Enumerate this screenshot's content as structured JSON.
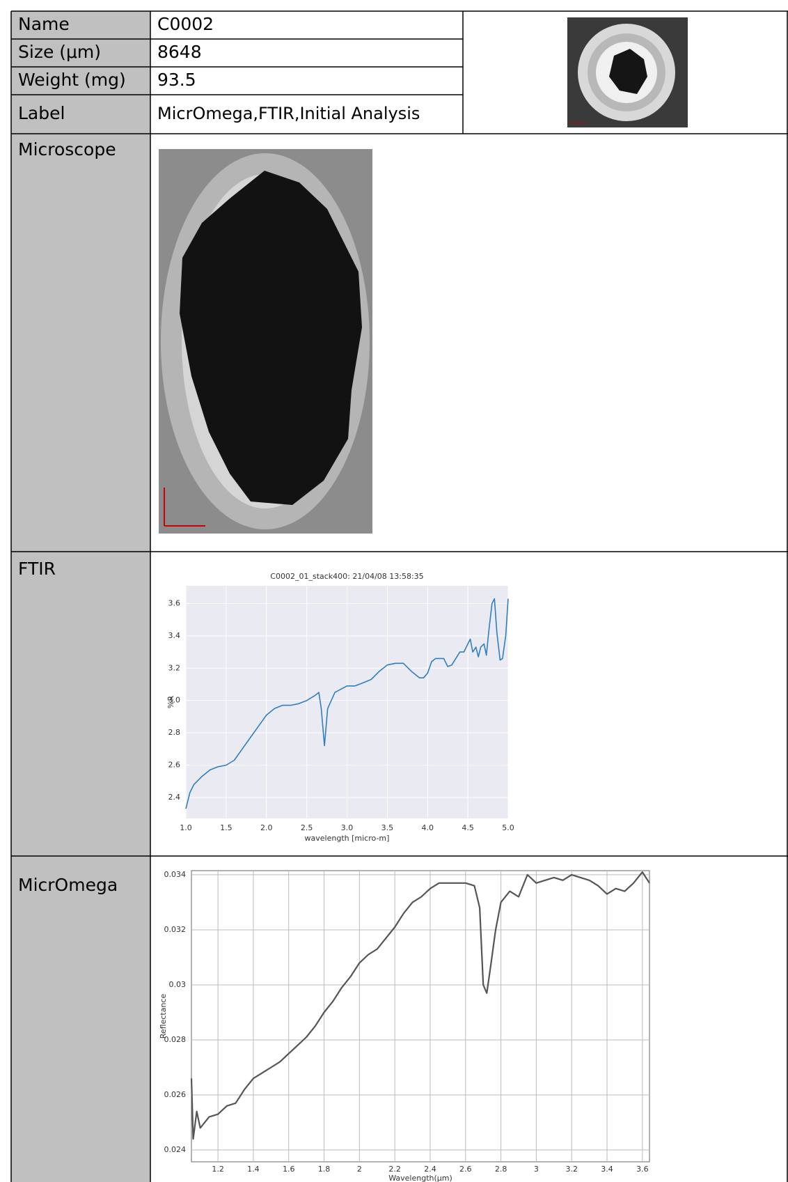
{
  "table": {
    "rows": [
      [
        "Name",
        "C0002"
      ],
      [
        "Size (μm)",
        "8648"
      ],
      [
        "Weight (mg)",
        "93.5"
      ],
      [
        "Label",
        "MicrOmega,FTIR,Initial Analysis"
      ]
    ],
    "microscope_label": "Microscope",
    "ftir_label": "FTIR",
    "micromega_label": "MicrOmega"
  },
  "chart_data": [
    {
      "type": "line",
      "title": "C0002_01_stack400:  21/04/08 13:58:35",
      "x_label": "wavelength [micro-m]",
      "y_label": "%R",
      "xlim": [
        1,
        5
      ],
      "ylim": [
        2.27,
        3.71
      ],
      "xticks": [
        {
          "value": 1,
          "label": "1.0"
        },
        1.5,
        {
          "value": 2,
          "label": "2.0"
        },
        2.5,
        {
          "value": 3,
          "label": "3.0"
        },
        3.5,
        {
          "value": 4,
          "label": "4.0"
        },
        4.5,
        {
          "value": 5,
          "label": "5.0"
        }
      ],
      "yticks": [
        2.4,
        2.6,
        2.8,
        {
          "value": 3,
          "label": "3.0"
        },
        3.2,
        3.4,
        3.6
      ],
      "grid": true,
      "background": "#eaeaf2",
      "x": [
        1.0,
        1.05,
        1.1,
        1.2,
        1.3,
        1.4,
        1.5,
        1.6,
        1.7,
        1.8,
        1.9,
        2.0,
        2.1,
        2.2,
        2.3,
        2.4,
        2.5,
        2.6,
        2.65,
        2.68,
        2.72,
        2.76,
        2.85,
        3.0,
        3.1,
        3.2,
        3.3,
        3.4,
        3.5,
        3.6,
        3.7,
        3.8,
        3.9,
        3.95,
        4.0,
        4.05,
        4.1,
        4.2,
        4.25,
        4.3,
        4.4,
        4.45,
        4.5,
        4.53,
        4.56,
        4.6,
        4.63,
        4.66,
        4.7,
        4.73,
        4.76,
        4.8,
        4.83,
        4.86,
        4.9,
        4.93,
        4.97,
        5.0
      ],
      "series": [
        {
          "color": "#2f7fc0",
          "values": [
            2.33,
            2.43,
            2.48,
            2.53,
            2.57,
            2.59,
            2.6,
            2.63,
            2.7,
            2.77,
            2.84,
            2.91,
            2.95,
            2.97,
            2.97,
            2.98,
            3.0,
            3.03,
            3.05,
            2.95,
            2.72,
            2.95,
            3.05,
            3.09,
            3.09,
            3.11,
            3.13,
            3.18,
            3.22,
            3.23,
            3.23,
            3.18,
            3.14,
            3.14,
            3.17,
            3.24,
            3.26,
            3.26,
            3.21,
            3.22,
            3.3,
            3.3,
            3.35,
            3.38,
            3.3,
            3.33,
            3.27,
            3.33,
            3.35,
            3.28,
            3.43,
            3.6,
            3.63,
            3.42,
            3.25,
            3.26,
            3.4,
            3.63
          ]
        }
      ]
    },
    {
      "type": "line",
      "x_label": "Wavelength(μm)",
      "y_label": "Reflectance",
      "xlim": [
        1.05,
        3.64
      ],
      "ylim": [
        0.02357,
        0.03415
      ],
      "xticks": [
        1.2,
        1.4,
        1.6,
        1.8,
        2,
        2.2,
        2.4,
        2.6,
        2.8,
        3,
        3.2,
        3.4,
        3.6
      ],
      "yticks": [
        0.024,
        0.026,
        0.028,
        0.03,
        0.032,
        0.034
      ],
      "grid": true,
      "background": "#ffffff",
      "x": [
        1.05,
        1.06,
        1.08,
        1.1,
        1.15,
        1.2,
        1.25,
        1.3,
        1.35,
        1.4,
        1.45,
        1.5,
        1.55,
        1.6,
        1.65,
        1.7,
        1.75,
        1.8,
        1.85,
        1.9,
        1.95,
        2.0,
        2.05,
        2.1,
        2.15,
        2.2,
        2.25,
        2.3,
        2.35,
        2.4,
        2.45,
        2.5,
        2.55,
        2.6,
        2.65,
        2.68,
        2.7,
        2.72,
        2.74,
        2.77,
        2.8,
        2.85,
        2.9,
        2.95,
        3.0,
        3.05,
        3.1,
        3.15,
        3.2,
        3.25,
        3.3,
        3.35,
        3.4,
        3.45,
        3.5,
        3.55,
        3.6,
        3.64
      ],
      "series": [
        {
          "color": "#555555",
          "values": [
            0.0266,
            0.0244,
            0.0254,
            0.0248,
            0.0252,
            0.0253,
            0.0256,
            0.0257,
            0.0262,
            0.0266,
            0.0268,
            0.027,
            0.0272,
            0.0275,
            0.0278,
            0.0281,
            0.0285,
            0.029,
            0.0294,
            0.0299,
            0.0303,
            0.0308,
            0.0311,
            0.0313,
            0.0317,
            0.0321,
            0.0326,
            0.033,
            0.0332,
            0.0335,
            0.0337,
            0.0337,
            0.0337,
            0.0337,
            0.0336,
            0.0328,
            0.03,
            0.0297,
            0.0306,
            0.032,
            0.033,
            0.0334,
            0.0332,
            0.034,
            0.0337,
            0.0338,
            0.0339,
            0.0338,
            0.034,
            0.0339,
            0.0338,
            0.0336,
            0.0333,
            0.0335,
            0.0334,
            0.0337,
            0.0341,
            0.0337
          ]
        }
      ]
    }
  ]
}
